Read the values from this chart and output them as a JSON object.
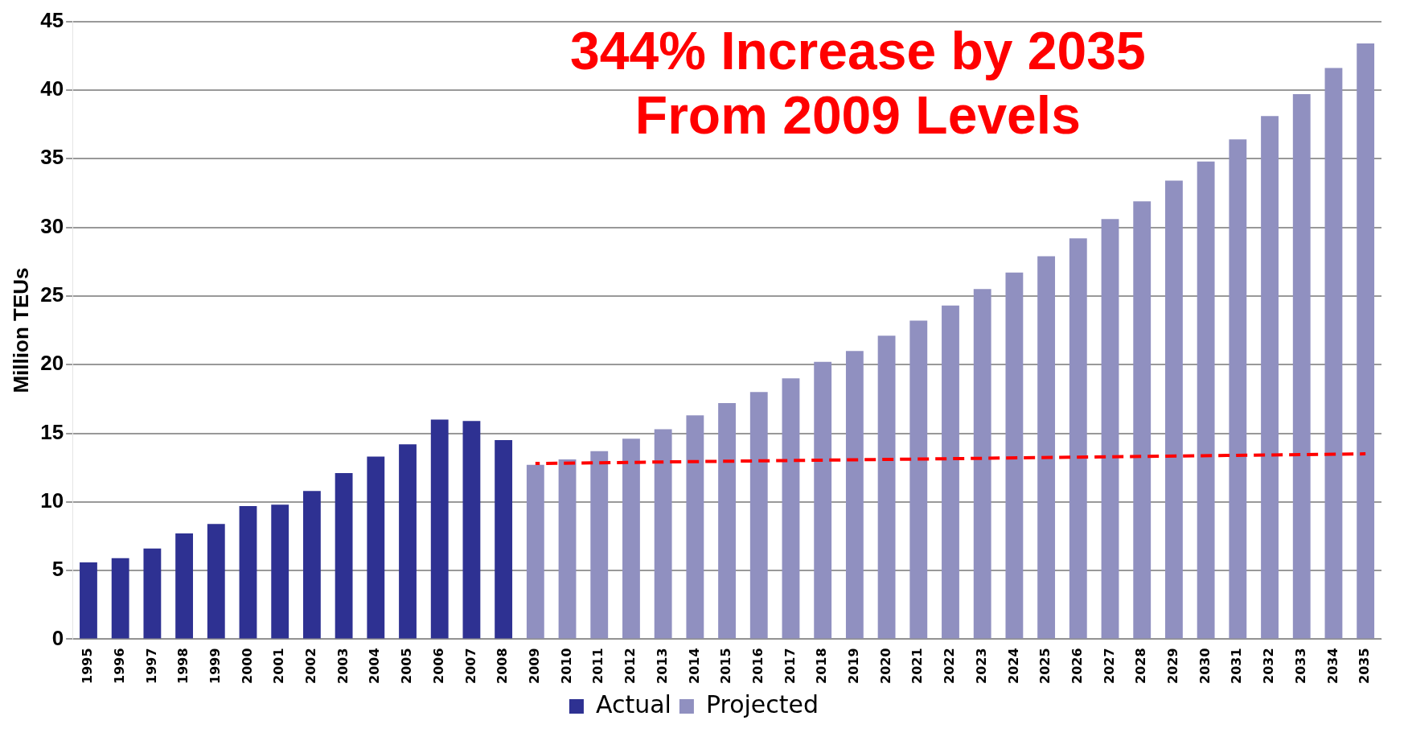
{
  "chart_data": {
    "type": "bar",
    "ylabel": "Million TEUs",
    "categories": [
      "1995",
      "1996",
      "1997",
      "1998",
      "1999",
      "2000",
      "2001",
      "2002",
      "2003",
      "2004",
      "2005",
      "2006",
      "2007",
      "2008",
      "2009",
      "2010",
      "2011",
      "2012",
      "2013",
      "2014",
      "2015",
      "2016",
      "2017",
      "2018",
      "2019",
      "2020",
      "2021",
      "2022",
      "2023",
      "2024",
      "2025",
      "2026",
      "2027",
      "2028",
      "2029",
      "2030",
      "2031",
      "2032",
      "2033",
      "2034",
      "2035"
    ],
    "series": [
      {
        "name": "Actual",
        "color": "#2e3192",
        "values": [
          5.6,
          5.9,
          6.6,
          7.7,
          8.4,
          9.7,
          9.8,
          10.8,
          12.1,
          13.3,
          14.2,
          16.0,
          15.9,
          14.5,
          null,
          null,
          null,
          null,
          null,
          null,
          null,
          null,
          null,
          null,
          null,
          null,
          null,
          null,
          null,
          null,
          null,
          null,
          null,
          null,
          null,
          null,
          null,
          null,
          null,
          null,
          null
        ]
      },
      {
        "name": "Projected",
        "color": "#9090c0",
        "values": [
          null,
          null,
          null,
          null,
          null,
          null,
          null,
          null,
          null,
          null,
          null,
          null,
          null,
          null,
          12.7,
          13.1,
          13.7,
          14.6,
          15.3,
          16.3,
          17.2,
          18.0,
          19.0,
          20.2,
          21.0,
          22.1,
          23.2,
          24.3,
          25.5,
          26.7,
          27.9,
          29.2,
          30.6,
          31.9,
          33.4,
          34.8,
          36.4,
          38.1,
          39.7,
          41.6,
          43.4
        ]
      },
      {
        "type": "line",
        "color": "#ff0000",
        "line_style": "dashed",
        "values": [
          null,
          null,
          null,
          null,
          null,
          null,
          null,
          null,
          null,
          null,
          null,
          null,
          null,
          null,
          12.8,
          null,
          null,
          null,
          null,
          null,
          null,
          null,
          null,
          null,
          null,
          null,
          null,
          null,
          null,
          null,
          null,
          null,
          null,
          null,
          null,
          null,
          null,
          null,
          null,
          null,
          13.5
        ]
      }
    ],
    "ylim": [
      0,
      45
    ],
    "yticks": [
      0,
      5,
      10,
      15,
      20,
      25,
      30,
      35,
      40,
      45
    ],
    "grid": "y",
    "legend": "bottom",
    "annotations": [
      "344% Increase by 2035",
      "From 2009 Levels"
    ]
  }
}
